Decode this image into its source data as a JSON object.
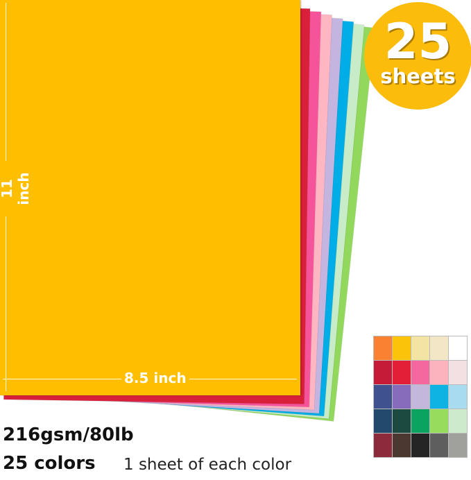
{
  "badge": {
    "number": "25",
    "unit": "sheets",
    "color": "#fcbc0c"
  },
  "front_sheet_color": "#ffbf00",
  "back_sheet_colors": [
    "#d9203a",
    "#f5549a",
    "#ffb6c3",
    "#c4b5e0",
    "#00ade6",
    "#c8ecc8",
    "#92d85c"
  ],
  "dimensions": {
    "height_label": "11 inch",
    "width_label": "8.5 inch"
  },
  "specs": {
    "weight": "216gsm/80lb",
    "colors": "25 colors",
    "note": "1 sheet of each color"
  },
  "swatches": [
    "#fb8132",
    "#fbc30a",
    "#f3e4a4",
    "#f3e6c6",
    "#ffffff",
    "#c51b38",
    "#e31e37",
    "#f4679f",
    "#fdb3bd",
    "#f2e0e2",
    "#40518f",
    "#876cbb",
    "#c4b7dc",
    "#0eb3e3",
    "#a8dbf0",
    "#234a6d",
    "#1c4940",
    "#0aa460",
    "#98dc5e",
    "#cdeacd",
    "#8d2a3c",
    "#4b3830",
    "#252525",
    "#5e5e5e",
    "#a0a19c"
  ]
}
